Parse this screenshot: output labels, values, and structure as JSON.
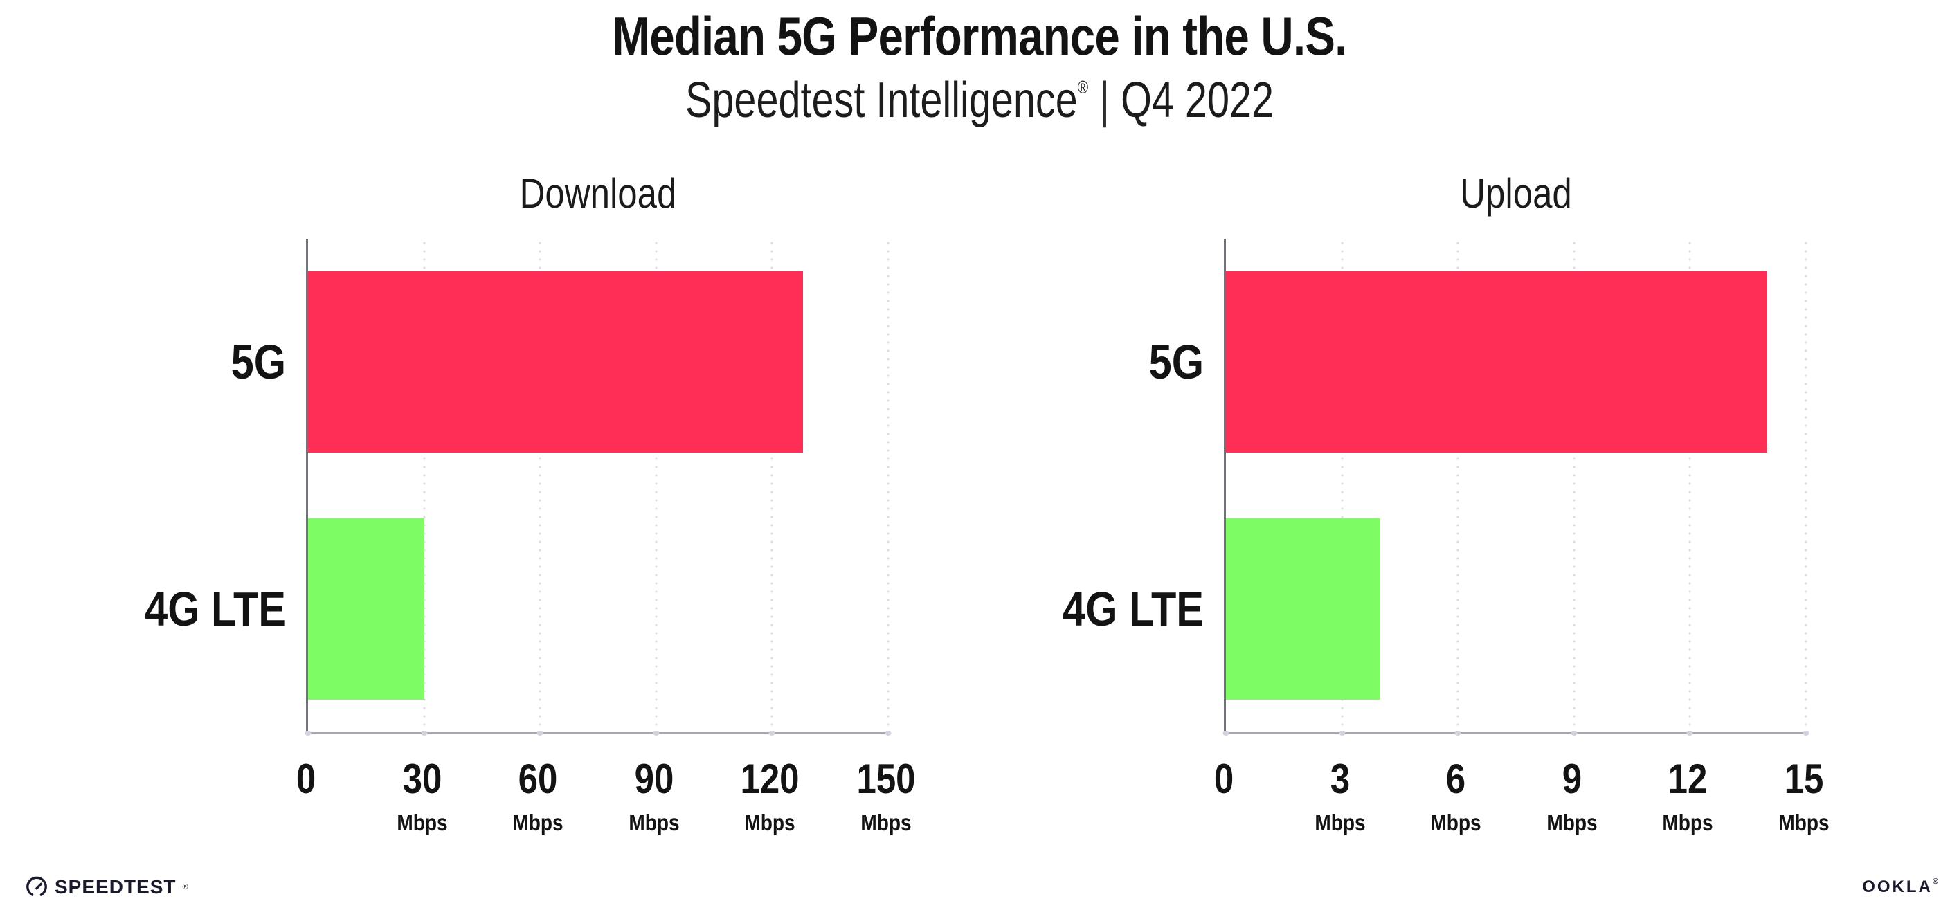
{
  "header": {
    "title": "Median 5G Performance in the U.S.",
    "subtitle": {
      "brand": "Speedtest Intelligence",
      "registered_mark": "®",
      "separator": "|",
      "period": "Q4 2022"
    }
  },
  "chart_data": [
    {
      "type": "bar",
      "orientation": "horizontal",
      "title": "Download",
      "categories": [
        "5G",
        "4G LTE"
      ],
      "values": [
        128,
        30
      ],
      "unit": "Mbps",
      "xlim": [
        0,
        150
      ],
      "xticks": [
        0,
        30,
        60,
        90,
        120,
        150
      ],
      "tick_unit_label": "Mbps",
      "grid": "dotted-vertical-gridlines",
      "legend": "none",
      "series_colors": [
        "#ff2e56",
        "#7efc64"
      ]
    },
    {
      "type": "bar",
      "orientation": "horizontal",
      "title": "Upload",
      "categories": [
        "5G",
        "4G LTE"
      ],
      "values": [
        14,
        4
      ],
      "unit": "Mbps",
      "xlim": [
        0,
        15
      ],
      "xticks": [
        0,
        3,
        6,
        9,
        12,
        15
      ],
      "tick_unit_label": "Mbps",
      "grid": "dotted-vertical-gridlines",
      "legend": "none",
      "series_colors": [
        "#ff2e56",
        "#7efc64"
      ]
    }
  ],
  "colors": {
    "bar_5g": "#ff2e56",
    "bar_4g_lte": "#7efc64",
    "gridline_dots": "#dcdce8",
    "x_axis": "#a7a7ae",
    "y_axis": "#72727b",
    "text": "#131313",
    "logo": "#181a2c"
  },
  "footer": {
    "speedtest_label": "SPEEDTEST",
    "speedtest_mark": "®",
    "ookla_label": "OOKLA",
    "ookla_mark": "®"
  }
}
